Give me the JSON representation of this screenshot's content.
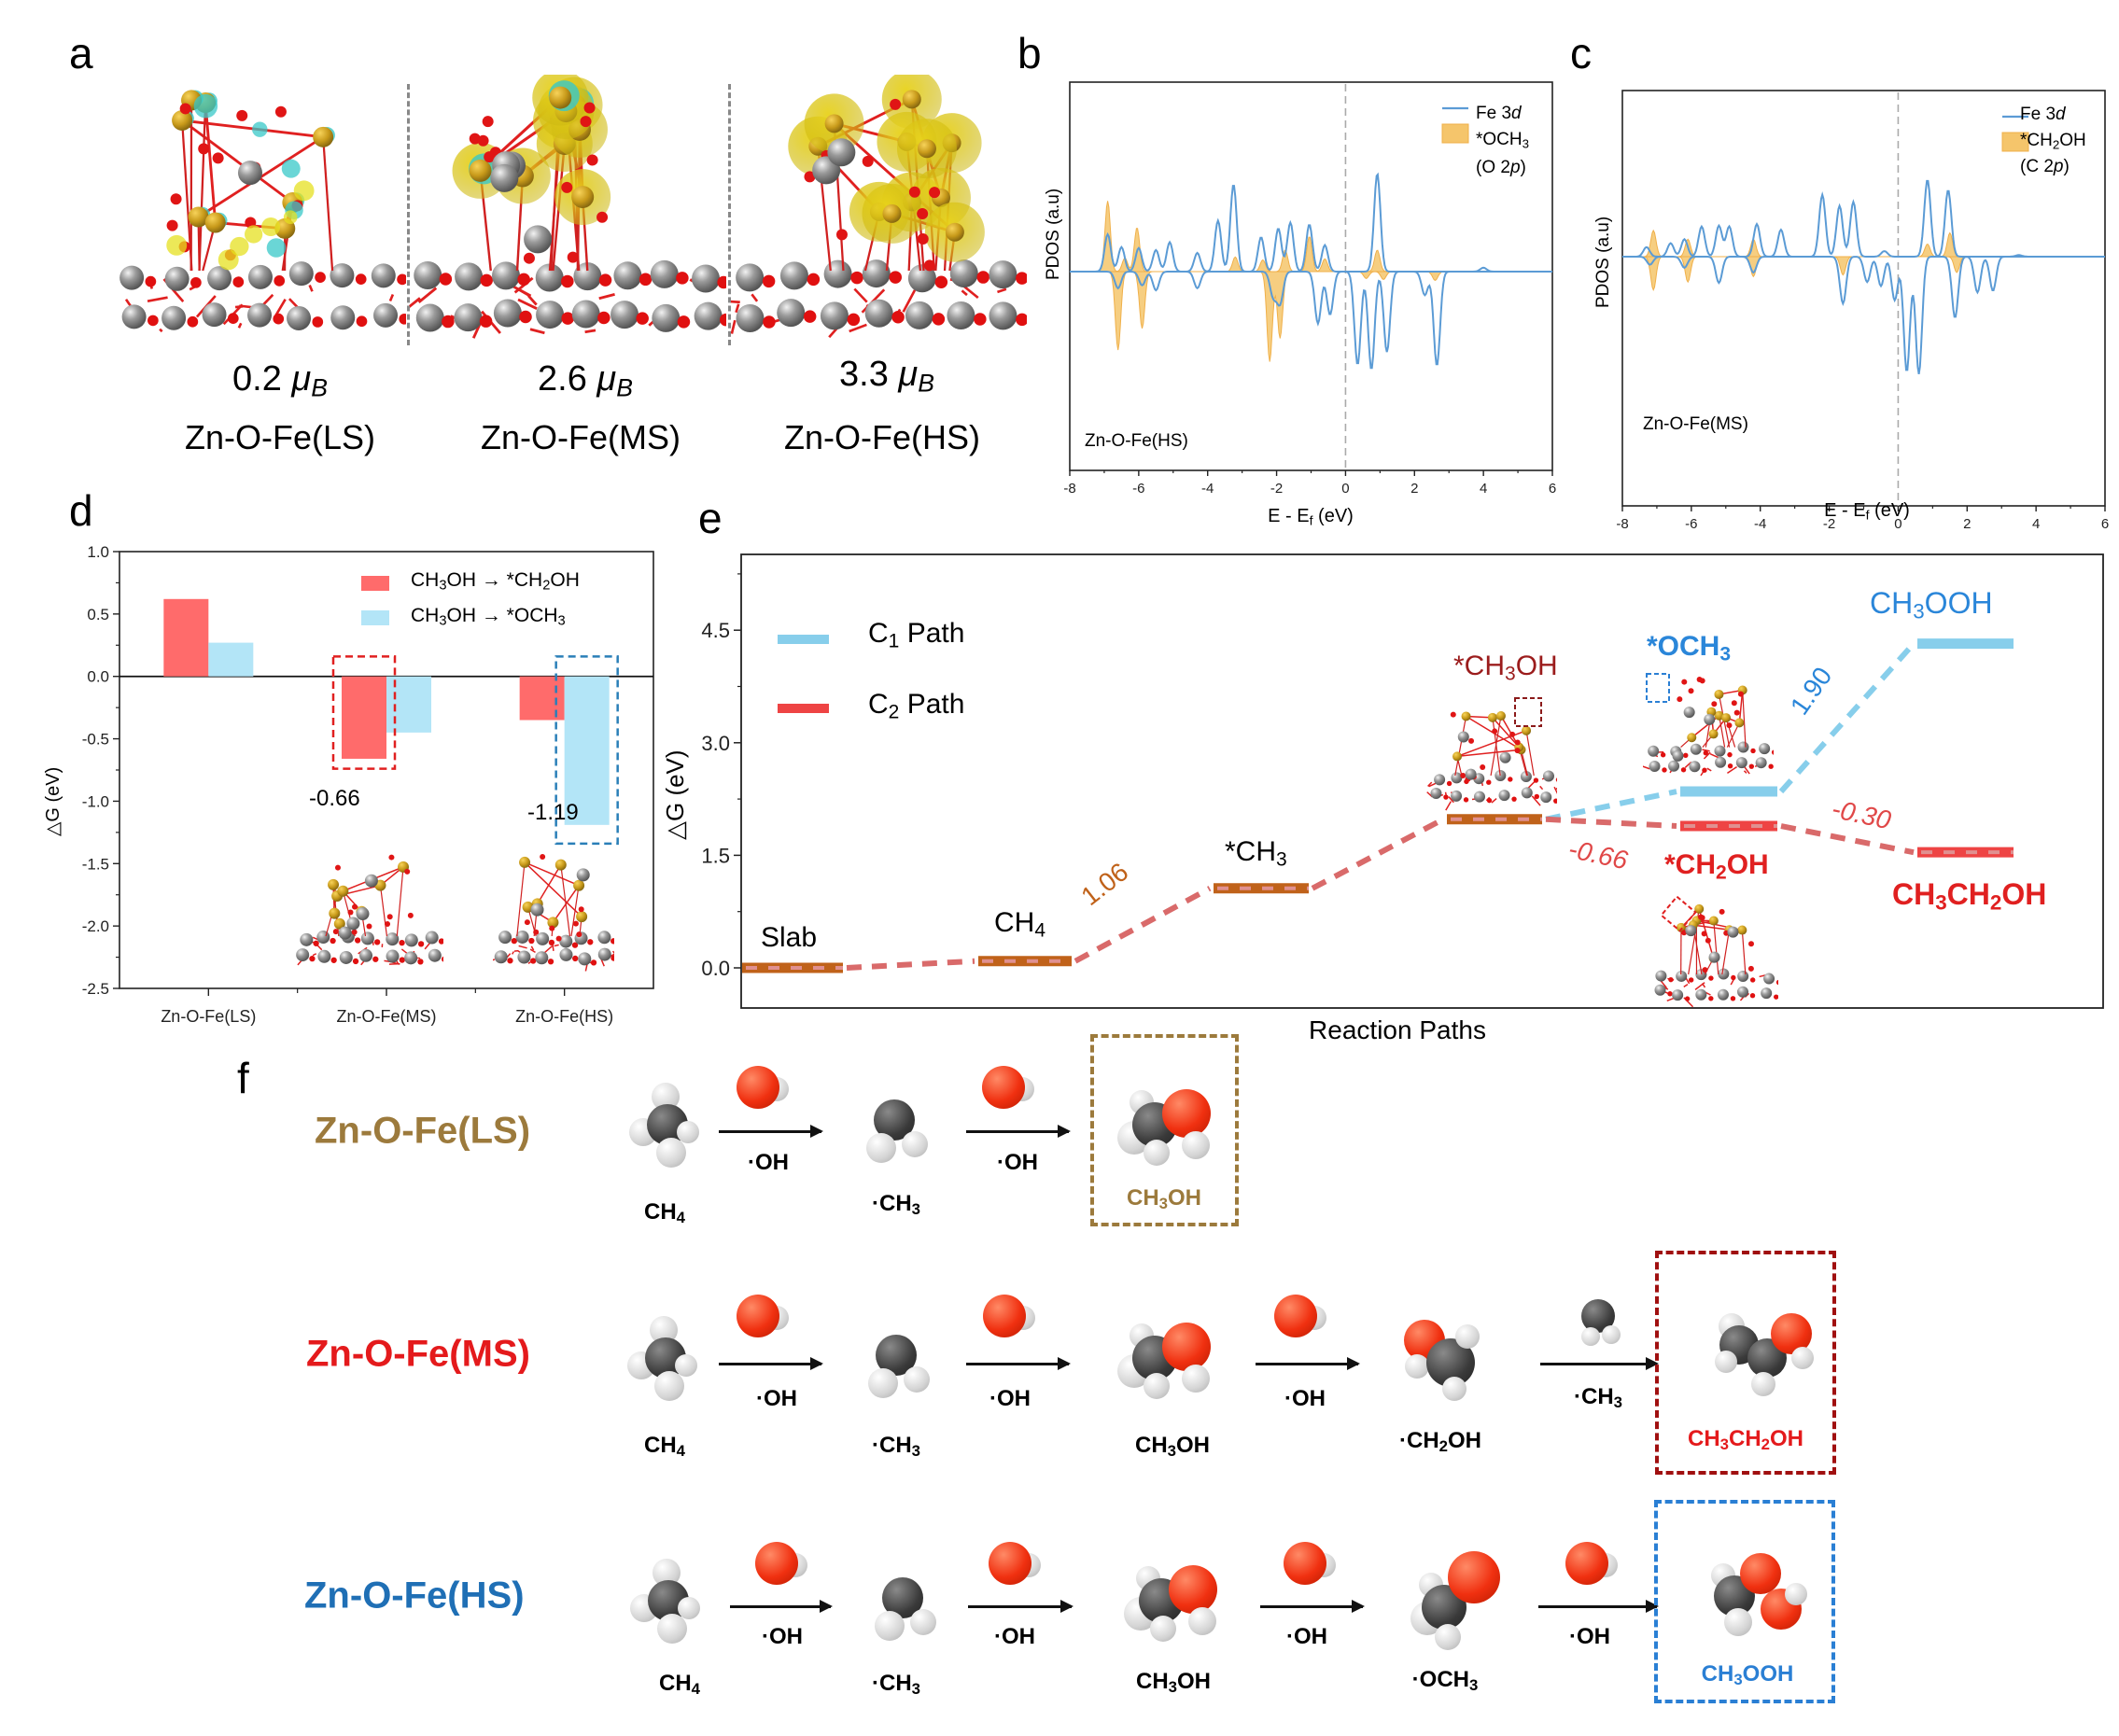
{
  "panel_labels": {
    "a": "a",
    "b": "b",
    "c": "c",
    "d": "d",
    "e": "e",
    "f": "f"
  },
  "panel_a": {
    "structures": [
      {
        "moment_value": "0.2",
        "moment_unit": "μ",
        "moment_sub": "B",
        "name": "Zn-O-Fe(LS)"
      },
      {
        "moment_value": "2.6",
        "moment_unit": "μ",
        "moment_sub": "B",
        "name": "Zn-O-Fe(MS)"
      },
      {
        "moment_value": "3.3",
        "moment_unit": "μ",
        "moment_sub": "B",
        "name": "Zn-O-Fe(HS)"
      }
    ]
  },
  "colors": {
    "fe3d_line": "#5b9bd5",
    "adsorbate_fill": "#f5c56b",
    "red_bar": "#ff6b6b",
    "blue_bar": "#b3e5f7",
    "c1_path": "#87ceeb",
    "c2_path": "#ee4444",
    "shared_level": "#c0621a",
    "dash_c2": "#d96a6a",
    "ls_color": "#9c7a3c",
    "ms_color": "#e41a1c",
    "hs_color": "#1f6fb5",
    "ms_box": "#a01010",
    "hs_box": "#2a7fd4"
  },
  "chart_data": [
    {
      "id": "b",
      "type": "area",
      "title": "",
      "xlabel": "E - E_f (eV)",
      "ylabel": "PDOS (a.u)",
      "xlim": [
        -8,
        6
      ],
      "xticks": [
        -8,
        -6,
        -4,
        -2,
        0,
        2,
        4,
        6
      ],
      "legend": [
        {
          "name": "Fe 3d",
          "style": "line"
        },
        {
          "name": "*OCH3",
          "sub": "(O 2p)",
          "style": "fill"
        }
      ],
      "legend_position": "top-right",
      "annotation": "Zn-O-Fe(HS)",
      "fermi_line": 0,
      "series": [
        {
          "name": "Fe 3d spin-up",
          "peaks": [
            [
              -6.9,
              0.38
            ],
            [
              -6.5,
              0.25
            ],
            [
              -6.0,
              0.24
            ],
            [
              -5.5,
              0.22
            ],
            [
              -5.1,
              0.3
            ],
            [
              -4.3,
              0.19
            ],
            [
              -3.7,
              0.52
            ],
            [
              -3.25,
              0.89
            ],
            [
              -2.45,
              0.35
            ],
            [
              -1.95,
              0.44
            ],
            [
              -1.6,
              0.5
            ],
            [
              -1.05,
              0.48
            ],
            [
              -0.6,
              0.27
            ],
            [
              0.92,
              1.0
            ],
            [
              4.0,
              0.04
            ]
          ]
        },
        {
          "name": "Fe 3d spin-down",
          "peaks": [
            [
              -6.6,
              -0.17
            ],
            [
              -5.9,
              -0.14
            ],
            [
              -5.5,
              -0.19
            ],
            [
              -4.3,
              -0.17
            ],
            [
              -2.1,
              -0.25
            ],
            [
              -1.9,
              -0.32
            ],
            [
              -0.8,
              -0.53
            ],
            [
              -0.45,
              -0.44
            ],
            [
              0.35,
              -0.95
            ],
            [
              0.75,
              -1.0
            ],
            [
              1.2,
              -0.82
            ],
            [
              2.3,
              -0.24
            ],
            [
              2.65,
              -0.96
            ]
          ]
        },
        {
          "name": "*OCH3 O 2p spin-up",
          "peaks": [
            [
              -6.9,
              0.72
            ],
            [
              -6.05,
              0.45
            ],
            [
              -6.4,
              0.14
            ],
            [
              -3.2,
              0.15
            ],
            [
              -2.4,
              0.12
            ],
            [
              -1.75,
              0.22
            ],
            [
              -1.05,
              0.36
            ],
            [
              -0.6,
              0.13
            ],
            [
              0.92,
              0.22
            ]
          ]
        },
        {
          "name": "*OCH3 O 2p spin-down",
          "peaks": [
            [
              -6.6,
              -0.8
            ],
            [
              -5.9,
              -0.58
            ],
            [
              -2.2,
              -0.92
            ],
            [
              -1.9,
              -0.68
            ],
            [
              0.6,
              -0.07
            ],
            [
              1.1,
              -0.08
            ],
            [
              2.6,
              -0.09
            ]
          ]
        }
      ]
    },
    {
      "id": "c",
      "type": "area",
      "title": "",
      "xlabel": "E - E_f (eV)",
      "ylabel": "PDOS (a.u)",
      "xlim": [
        -8,
        6
      ],
      "xticks": [
        -8,
        -6,
        -4,
        -2,
        0,
        2,
        4,
        6
      ],
      "legend": [
        {
          "name": "Fe 3d",
          "style": "line"
        },
        {
          "name": "*CH2OH",
          "sub": "(C 2p)",
          "style": "fill"
        }
      ],
      "legend_position": "top-right",
      "annotation": "Zn-O-Fe(MS)",
      "fermi_line": 0,
      "series": [
        {
          "name": "Fe 3d spin-up",
          "peaks": [
            [
              -7.3,
              0.12
            ],
            [
              -6.6,
              0.17
            ],
            [
              -6.2,
              0.22
            ],
            [
              -5.7,
              0.38
            ],
            [
              -5.2,
              0.39
            ],
            [
              -4.9,
              0.38
            ],
            [
              -4.1,
              0.41
            ],
            [
              -3.4,
              0.34
            ],
            [
              -2.2,
              0.78
            ],
            [
              -1.7,
              0.64
            ],
            [
              -1.3,
              0.69
            ],
            [
              -0.4,
              0.07
            ],
            [
              0.85,
              0.97
            ],
            [
              1.45,
              0.84
            ],
            [
              3.5,
              0.02
            ]
          ]
        },
        {
          "name": "Fe 3d spin-down",
          "peaks": [
            [
              -7.2,
              -0.1
            ],
            [
              -6.2,
              -0.14
            ],
            [
              -5.2,
              -0.33
            ],
            [
              -4.2,
              -0.2
            ],
            [
              -1.6,
              -0.59
            ],
            [
              -0.9,
              -0.32
            ],
            [
              -0.5,
              -0.37
            ],
            [
              -0.1,
              -0.55
            ],
            [
              0.25,
              -1.45
            ],
            [
              0.6,
              -1.48
            ],
            [
              1.65,
              -0.77
            ],
            [
              2.3,
              -0.45
            ],
            [
              2.75,
              -0.43
            ]
          ]
        },
        {
          "name": "*CH2OH C 2p spin-up",
          "peaks": [
            [
              -7.1,
              0.33
            ],
            [
              -6.1,
              0.22
            ],
            [
              -4.2,
              0.22
            ],
            [
              0.85,
              0.16
            ],
            [
              1.5,
              0.3
            ]
          ]
        },
        {
          "name": "*CH2OH C 2p spin-down",
          "peaks": [
            [
              -7.1,
              -0.42
            ],
            [
              -6.1,
              -0.32
            ],
            [
              -4.2,
              -0.25
            ],
            [
              -1.6,
              -0.23
            ],
            [
              1.7,
              -0.2
            ]
          ]
        }
      ]
    },
    {
      "id": "d",
      "type": "bar",
      "title": "",
      "xlabel": "",
      "ylabel": "ΔG (eV)",
      "ylim": [
        -2.5,
        1.0
      ],
      "yticks": [
        1.0,
        0.5,
        0.0,
        -0.5,
        -1.0,
        -1.5,
        -2.0,
        -2.5
      ],
      "categories": [
        "Zn-O-Fe(LS)",
        "Zn-O-Fe(MS)",
        "Zn-O-Fe(HS)"
      ],
      "series": [
        {
          "name": "CH3OH → *CH2OH",
          "values": [
            0.62,
            -0.66,
            -0.35
          ]
        },
        {
          "name": "CH3OH → *OCH3",
          "values": [
            0.27,
            -0.45,
            -1.19
          ]
        }
      ],
      "legend_position": "top-right",
      "annotations": [
        {
          "text": "-0.66",
          "category": "Zn-O-Fe(MS)",
          "series": "CH3OH → *CH2OH",
          "box": "red-dashed"
        },
        {
          "text": "-1.19",
          "category": "Zn-O-Fe(HS)",
          "series": "CH3OH → *OCH3",
          "box": "blue-dashed"
        }
      ]
    },
    {
      "id": "e",
      "type": "line",
      "title": "",
      "xlabel": "Reaction Paths",
      "ylabel": "ΔG (eV)",
      "ylim": [
        -0.5,
        5.5
      ],
      "yticks": [
        0.0,
        1.5,
        3.0,
        4.5
      ],
      "legend": [
        {
          "name": "C1 Path",
          "sub": "1"
        },
        {
          "name": "C2 Path",
          "sub": "2"
        }
      ],
      "legend_position": "top-left",
      "levels": [
        {
          "label": "Slab",
          "value": 0.0,
          "path": "shared",
          "step": 0
        },
        {
          "label": "CH4",
          "value": 0.09,
          "path": "shared",
          "step": 1
        },
        {
          "label": "*CH3",
          "value": 1.06,
          "path": "shared",
          "step": 2
        },
        {
          "label": "*CH3OH",
          "value": 1.98,
          "path": "shared",
          "step": 3
        },
        {
          "label": "*OCH3",
          "value": 2.35,
          "path": "C1",
          "step": 4
        },
        {
          "label": "CH3OOH",
          "value": 4.32,
          "path": "C1",
          "step": 5
        },
        {
          "label": "*CH2OH",
          "value": 1.89,
          "path": "C2",
          "step": 4
        },
        {
          "label": "CH3CH2OH",
          "value": 1.54,
          "path": "C2",
          "step": 5
        }
      ],
      "step_annotations": [
        {
          "text": "1.06",
          "between": [
            "CH4",
            "*CH3"
          ]
        },
        {
          "text": "1.90",
          "between": [
            "*OCH3",
            "CH3OOH"
          ]
        },
        {
          "text": "-0.66",
          "between": [
            "*CH3OH",
            "*CH2OH"
          ]
        },
        {
          "text": "-0.30",
          "between": [
            "*CH2OH",
            "CH3CH2OH"
          ]
        }
      ]
    }
  ],
  "panel_b": {
    "ylabel": "PDOS (a.u)",
    "xlabel_main": "E - E",
    "xlabel_sub": "f",
    "xlabel_tail": " (eV)",
    "legend_line": "Fe 3",
    "legend_line_italic": "d",
    "legend_fill_main": "*OCH",
    "legend_fill_sub": "3",
    "legend_fill_orb": "(O 2",
    "legend_fill_orb_italic": "p",
    "legend_fill_orb_tail": ")",
    "annotation": "Zn-O-Fe(HS)",
    "xticks": [
      "-8",
      "-6",
      "-4",
      "-2",
      "0",
      "2",
      "4",
      "6"
    ]
  },
  "panel_c": {
    "ylabel": "PDOS (a.u)",
    "xlabel_main": "E - E",
    "xlabel_sub": "f",
    "xlabel_tail": " (eV)",
    "legend_line": "Fe 3",
    "legend_line_italic": "d",
    "legend_fill_main": "*CH",
    "legend_fill_sub": "2",
    "legend_fill_tail": "OH",
    "legend_fill_orb": "(C 2",
    "legend_fill_orb_italic": "p",
    "legend_fill_orb_tail": ")",
    "annotation": "Zn-O-Fe(MS)",
    "xticks": [
      "-8",
      "-6",
      "-4",
      "-2",
      "0",
      "2",
      "4",
      "6"
    ]
  },
  "panel_d": {
    "ylabel": "△G (eV)",
    "yticks": [
      "1.0",
      "0.5",
      "0.0",
      "-0.5",
      "-1.0",
      "-1.5",
      "-2.0",
      "-2.5"
    ],
    "categories": [
      "Zn-O-Fe(LS)",
      "Zn-O-Fe(MS)",
      "Zn-O-Fe(HS)"
    ],
    "legend": [
      {
        "a": "CH",
        "a_sub": "3",
        "b": "OH → *CH",
        "b_sub": "2",
        "c": "OH"
      },
      {
        "a": "CH",
        "a_sub": "3",
        "b": "OH → *OCH",
        "b_sub": "3",
        "c": ""
      }
    ],
    "annot_ms": "-0.66",
    "annot_hs": "-1.19"
  },
  "panel_e": {
    "ylabel": "△G (eV)",
    "xlabel": "Reaction Paths",
    "yticks": [
      "0.0",
      "1.5",
      "3.0",
      "4.5"
    ],
    "legend": [
      {
        "a": "C",
        "sub": "1",
        "b": " Path"
      },
      {
        "a": "C",
        "sub": "2",
        "b": " Path"
      }
    ],
    "labels": {
      "slab": "Slab",
      "ch4_a": "CH",
      "ch4_sub": "4",
      "ch3_a": "*CH",
      "ch3_sub": "3",
      "ch3oh_a": "*CH",
      "ch3oh_sub": "3",
      "ch3oh_b": "OH",
      "och3_a": "*OCH",
      "och3_sub": "3",
      "ch2oh_a": "*CH",
      "ch2oh_sub": "2",
      "ch2oh_b": "OH",
      "ch3ooh_a": "CH",
      "ch3ooh_sub": "3",
      "ch3ooh_b": "OOH",
      "etoh_a": "CH",
      "etoh_sub1": "3",
      "etoh_b": "CH",
      "etoh_sub2": "2",
      "etoh_c": "OH"
    },
    "steps": {
      "s1": "1.06",
      "s2": "1.90",
      "s3": "-0.66",
      "s4": "-0.30"
    }
  },
  "panel_f": {
    "rows": [
      {
        "label": "Zn-O-Fe(LS)",
        "species": [
          {
            "a": "CH",
            "sub": "4",
            "b": ""
          },
          {
            "a": "·CH",
            "sub": "3",
            "b": ""
          },
          {
            "a": "CH",
            "sub": "3",
            "b": "OH"
          }
        ],
        "reagents": [
          "·OH",
          "·OH"
        ]
      },
      {
        "label": "Zn-O-Fe(MS)",
        "species": [
          {
            "a": "CH",
            "sub": "4",
            "b": ""
          },
          {
            "a": "·CH",
            "sub": "3",
            "b": ""
          },
          {
            "a": "CH",
            "sub": "3",
            "b": "OH"
          },
          {
            "a": "·CH",
            "sub": "2",
            "b": "OH"
          },
          {
            "a": "CH",
            "sub": "3",
            "b": "CH",
            "sub2": "2",
            "c": "OH"
          }
        ],
        "reagents": [
          "·OH",
          "·OH",
          "·OH"
        ],
        "reagent_last_a": "·CH",
        "reagent_last_sub": "3"
      },
      {
        "label": "Zn-O-Fe(HS)",
        "species": [
          {
            "a": "CH",
            "sub": "4",
            "b": ""
          },
          {
            "a": "·CH",
            "sub": "3",
            "b": ""
          },
          {
            "a": "CH",
            "sub": "3",
            "b": "OH"
          },
          {
            "a": "·OCH",
            "sub": "3",
            "b": ""
          },
          {
            "a": "CH",
            "sub": "3",
            "b": "OOH"
          }
        ],
        "reagents": [
          "·OH",
          "·OH",
          "·OH",
          "·OH"
        ]
      }
    ]
  }
}
